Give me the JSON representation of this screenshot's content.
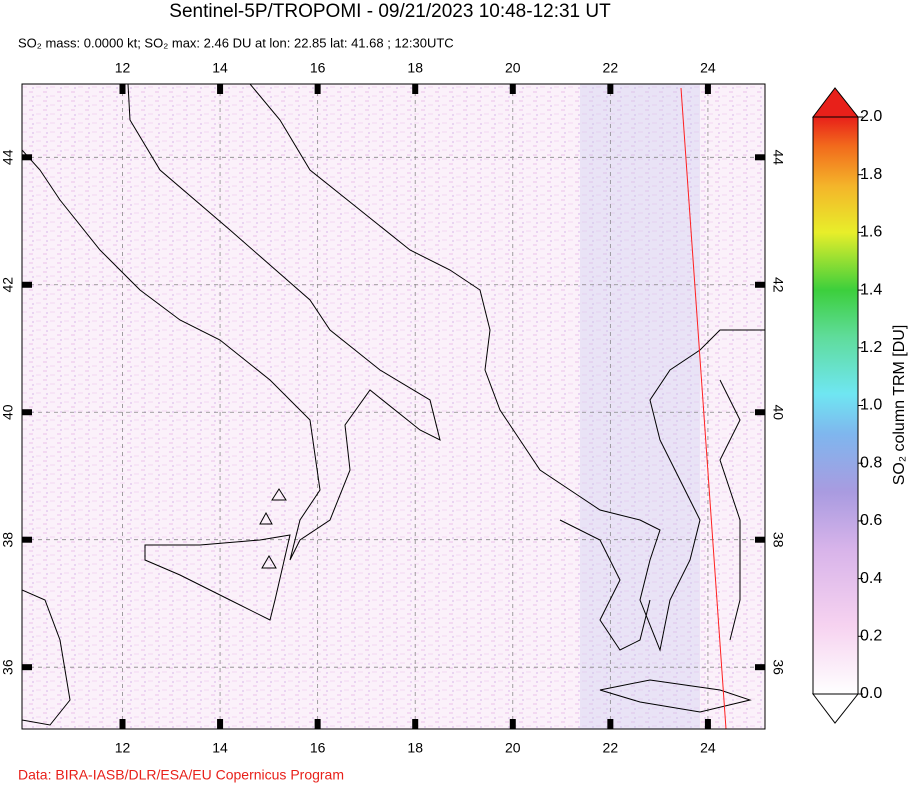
{
  "title": "Sentinel-5P/TROPOMI - 09/21/2023 10:48-12:31 UT",
  "subtitle": "SO₂ mass: 0.0000 kt; SO₂ max: 2.46 DU at lon: 22.85 lat: 41.68 ; 12:30UTC",
  "map": {
    "xlim": [
      9.94,
      25.17
    ],
    "ylim": [
      35.03,
      45.15
    ],
    "xticks": [
      12,
      14,
      16,
      18,
      20,
      22,
      24
    ],
    "yticks": [
      36,
      38,
      40,
      42,
      44
    ]
  },
  "colorbar": {
    "label": "SO₂ column TRM [DU]",
    "lim": [
      0,
      2
    ],
    "ticks": [
      {
        "value": 0,
        "label": "0.0"
      },
      {
        "value": 0.2,
        "label": "0.2"
      },
      {
        "value": 0.4,
        "label": "0.4"
      },
      {
        "value": 0.6,
        "label": "0.6"
      },
      {
        "value": 0.8,
        "label": "0.8"
      },
      {
        "value": 1,
        "label": "1.0"
      },
      {
        "value": 1.2,
        "label": "1.2"
      },
      {
        "value": 1.4,
        "label": "1.4"
      },
      {
        "value": 1.6,
        "label": "1.6"
      },
      {
        "value": 1.8,
        "label": "1.8"
      },
      {
        "value": 2,
        "label": "2.0"
      }
    ]
  },
  "credit": "Data: BIRA-IASB/DLR/ESA/EU Copernicus Program"
}
